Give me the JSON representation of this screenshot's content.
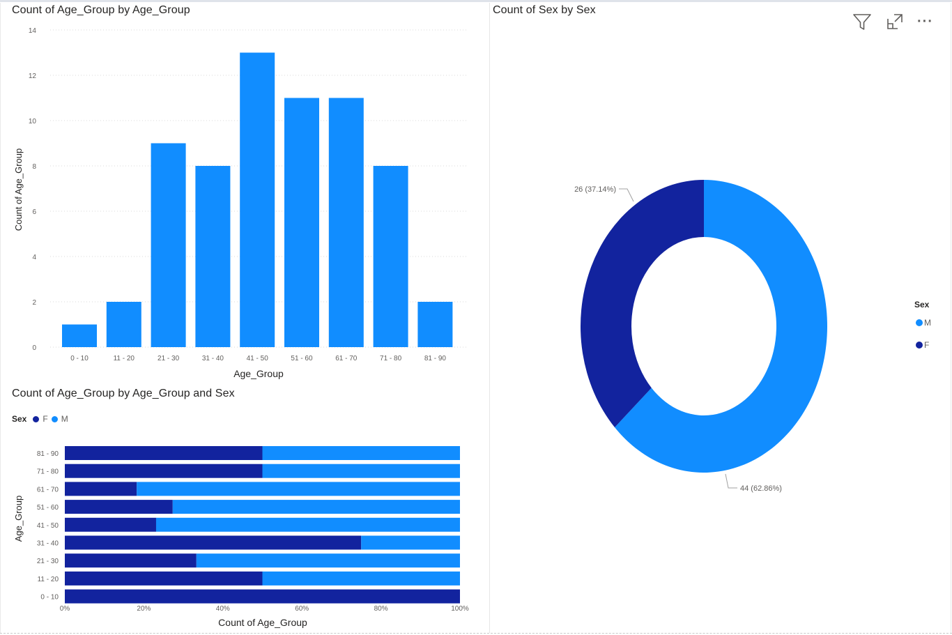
{
  "colors": {
    "M": "#118dff",
    "F": "#12239e",
    "grid": "#d8d8d8",
    "axis_text": "#605e5c"
  },
  "toolbar": {
    "filter_icon": "filter-icon",
    "focus_icon": "focus-mode-icon",
    "more_icon": "more-options-icon",
    "more_glyph": "···"
  },
  "chart_data": [
    {
      "id": "age-column",
      "type": "bar",
      "title": "Count of Age_Group by Age_Group",
      "xlabel": "Age_Group",
      "ylabel": "Count of Age_Group",
      "categories": [
        "0 - 10",
        "11 - 20",
        "21 - 30",
        "31 - 40",
        "41 - 50",
        "51 - 60",
        "61 - 70",
        "71 - 80",
        "81 - 90"
      ],
      "values": [
        1,
        2,
        9,
        8,
        13,
        11,
        11,
        8,
        2
      ],
      "ylim": [
        0,
        14
      ],
      "yticks": [
        "0",
        "2",
        "4",
        "6",
        "8",
        "10",
        "12",
        "14"
      ],
      "grid": true
    },
    {
      "id": "sex-donut",
      "type": "pie",
      "title": "Count of Sex by Sex",
      "legend_title": "Sex",
      "legend_position": "right",
      "categories": [
        "M",
        "F"
      ],
      "values": [
        44,
        26
      ],
      "data_labels": [
        "44 (62.86%)",
        "26 (37.14%)"
      ]
    },
    {
      "id": "age-sex-stacked",
      "type": "bar",
      "orientation": "horizontal",
      "stacking": "100%",
      "title": "Count of Age_Group by Age_Group and Sex",
      "legend_title": "Sex",
      "legend_position": "top-left",
      "xlabel": "Count of Age_Group",
      "ylabel": "Age_Group",
      "categories": [
        "81 - 90",
        "71 - 80",
        "61 - 70",
        "51 - 60",
        "41 - 50",
        "31 - 40",
        "21 - 30",
        "11 - 20",
        "0 - 10"
      ],
      "series": [
        {
          "name": "F",
          "values": [
            50,
            50,
            18.2,
            27.3,
            23.1,
            75,
            33.3,
            50,
            100
          ]
        },
        {
          "name": "M",
          "values": [
            50,
            50,
            81.8,
            72.7,
            76.9,
            25,
            66.7,
            50,
            0
          ]
        }
      ],
      "xticks": [
        "0%",
        "20%",
        "40%",
        "60%",
        "80%",
        "100%"
      ],
      "xlim": [
        0,
        100
      ]
    }
  ]
}
